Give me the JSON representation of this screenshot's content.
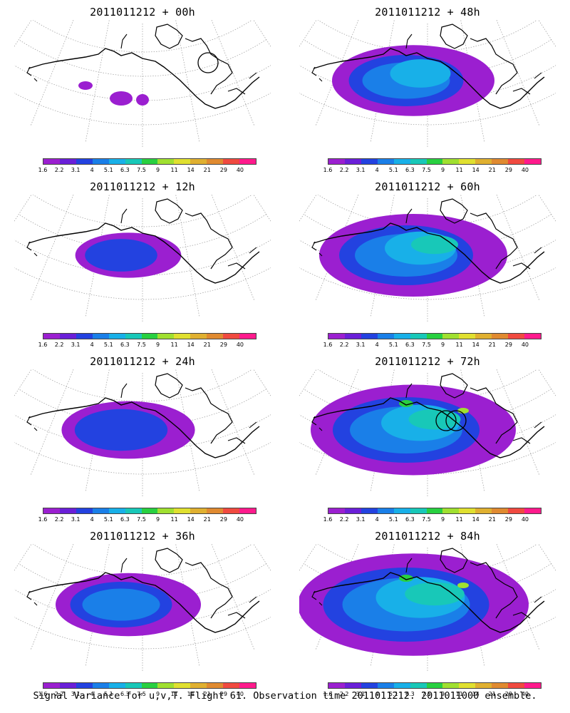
{
  "panels": [
    {
      "title": "2011011212 + 00h",
      "intensity": 0.05,
      "circles": 1
    },
    {
      "title": "2011011212 + 48h",
      "intensity": 0.45,
      "circles": 0
    },
    {
      "title": "2011011212 + 12h",
      "intensity": 0.12,
      "circles": 0
    },
    {
      "title": "2011011212 + 60h",
      "intensity": 0.6,
      "circles": 0
    },
    {
      "title": "2011011212 + 24h",
      "intensity": 0.28,
      "circles": 0
    },
    {
      "title": "2011011212 + 72h",
      "intensity": 0.7,
      "circles": 2
    },
    {
      "title": "2011011212 + 36h",
      "intensity": 0.35,
      "circles": 0
    },
    {
      "title": "2011011212 + 84h",
      "intensity": 0.85,
      "circles": 0
    }
  ],
  "colorbar": {
    "labels": [
      "1.6",
      "2.2",
      "3.1",
      "4",
      "5.1",
      "6.3",
      "7.5",
      "9",
      "11",
      "14",
      "21",
      "29",
      "40"
    ],
    "colors": [
      "#9b1fd0",
      "#6a1fd8",
      "#2342e0",
      "#1a7fe8",
      "#18b0e8",
      "#18c8b8",
      "#28d040",
      "#a0e030",
      "#e0e030",
      "#e0b030",
      "#e08a30",
      "#f04a40",
      "#ff1a8c"
    ]
  },
  "caption": "Signal Variance for u,v,T. Flight 61. Observation time 2011011212. 2011011000 ensemble."
}
